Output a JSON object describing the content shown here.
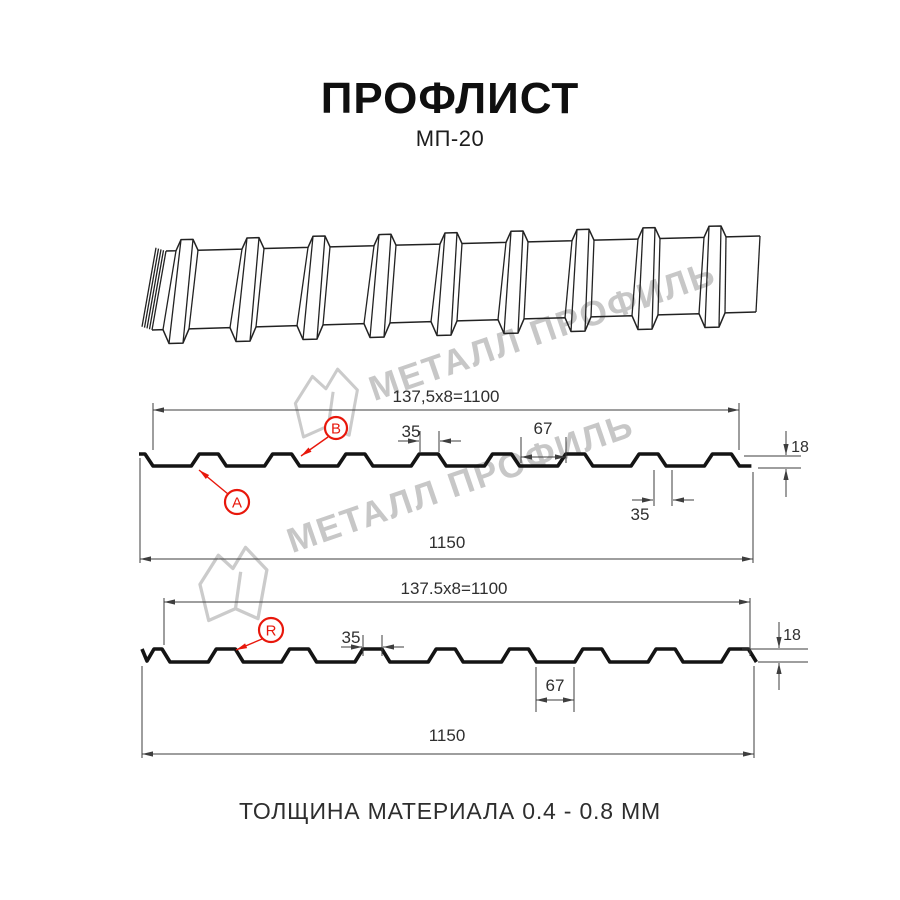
{
  "title": "ПРОФЛИСТ",
  "subtitle": "МП-20",
  "footer": "ТОЛЩИНА МАТЕРИАЛА 0.4 - 0.8 ММ",
  "watermark": {
    "text": "МЕТАЛЛ ПРОФИЛЬ"
  },
  "colors": {
    "accent_red": "#e8170b",
    "line": "#3e3e3e",
    "profile": "#141414",
    "sheet3d": "#222222",
    "watermark": "#c7c7c7",
    "text": "#2f2f2f"
  },
  "profile1": {
    "dim_width_top": "137,5x8=1100",
    "dim_rib_top": "35",
    "dim_gap": "67",
    "dim_height": "18",
    "dim_rib_bottom": "35",
    "dim_total": "1150",
    "label_a": "A",
    "label_b": "B"
  },
  "profile2": {
    "dim_width_top": "137.5x8=1100",
    "dim_rib_top": "35",
    "dim_gap": "67",
    "dim_height": "18",
    "dim_total": "1150",
    "label_r": "R"
  }
}
